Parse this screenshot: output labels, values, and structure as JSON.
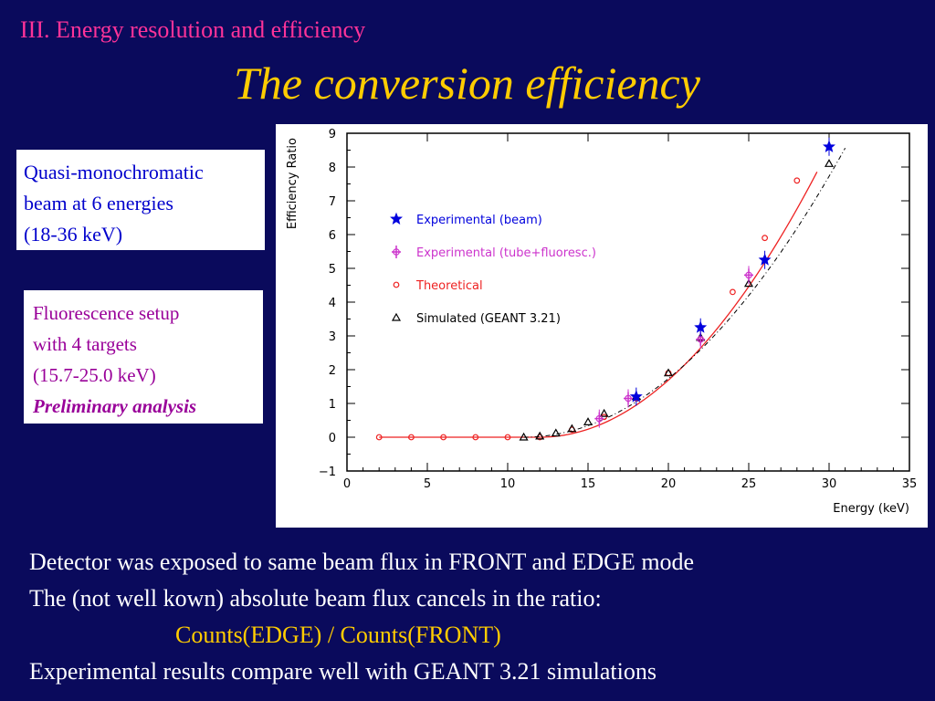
{
  "header": {
    "section_title": "III. Energy resolution and efficiency",
    "slide_title": "The conversion efficiency"
  },
  "boxes": {
    "box1_lines": [
      "Quasi-monochromatic",
      "beam at 6 energies",
      "(18-36 keV)"
    ],
    "box2_lines": [
      "Fluorescence setup",
      "with 4 targets",
      "(15.7-25.0 keV)"
    ],
    "box2_emphasis": "Preliminary analysis"
  },
  "bottom": {
    "line1": "Detector was exposed to same beam flux in FRONT and EDGE mode",
    "line2": "The (not well kown) absolute beam flux cancels in the ratio:",
    "formula": "Counts(EDGE) / Counts(FRONT)",
    "line3": "Experimental results compare well with GEANT 3.21 simulations"
  },
  "colors": {
    "background": "#0a0a5c",
    "section_title": "#ff3399",
    "slide_title": "#ffcc00",
    "box1_text": "#0000cc",
    "box2_text": "#990099",
    "beam": "#0000dd",
    "tube": "#cc33cc",
    "theory": "#ee2222",
    "sim": "#000000"
  },
  "chart_data": {
    "type": "scatter",
    "xlabel": "Energy (keV)",
    "ylabel": "Efficiency Ratio",
    "xlim": [
      0,
      35
    ],
    "ylim": [
      -1,
      9
    ],
    "xticks": [
      0,
      5,
      10,
      15,
      20,
      25,
      30,
      35
    ],
    "yticks": [
      -1,
      0,
      1,
      2,
      3,
      4,
      5,
      6,
      7,
      8,
      9
    ],
    "grid": false,
    "legend_position": "upper-left",
    "series": [
      {
        "name": "Experimental (beam)",
        "marker": "star",
        "color": "#0000dd",
        "x": [
          18,
          22,
          26,
          30
        ],
        "y": [
          1.2,
          3.25,
          5.25,
          8.6
        ]
      },
      {
        "name": "Experimental (tube+fluoresc.)",
        "marker": "cross",
        "color": "#cc33cc",
        "x": [
          15.7,
          17.5,
          22,
          25
        ],
        "y": [
          0.55,
          1.15,
          2.9,
          4.8
        ]
      },
      {
        "name": "Theoretical",
        "marker": "circle",
        "color": "#ee2222",
        "line": "solid",
        "x": [
          2,
          4,
          6,
          8,
          10,
          12,
          14,
          16,
          18,
          20,
          22,
          24,
          26,
          28
        ],
        "y": [
          0,
          0,
          0,
          0,
          0,
          0,
          0.22,
          0.6,
          1.15,
          1.9,
          2.9,
          4.3,
          5.9,
          7.6
        ]
      },
      {
        "name": "Simulated (GEANT 3.21)",
        "marker": "triangle",
        "color": "#000000",
        "line": "dashdot",
        "x": [
          11,
          12,
          13,
          14,
          15,
          16,
          18,
          20,
          22,
          25,
          30
        ],
        "y": [
          0,
          0.03,
          0.12,
          0.25,
          0.45,
          0.7,
          1.2,
          1.9,
          2.95,
          4.55,
          8.1
        ]
      }
    ]
  }
}
